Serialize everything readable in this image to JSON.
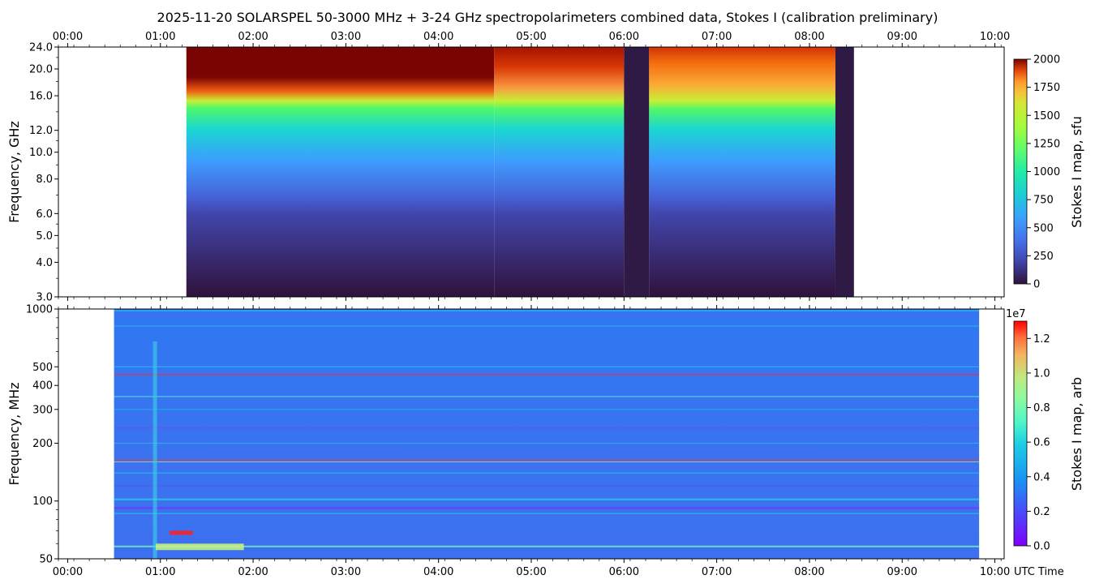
{
  "title": "2025-11-20  SOLARSPEL  50-3000 MHz  +  3-24 GHz  spectropolarimeters combined data,  Stokes I  (calibration preliminary)",
  "x_time_label": "UTC Time",
  "chart_data": [
    {
      "type": "heatmap",
      "panel": "upper",
      "ylabel": "Frequency, GHz",
      "xlim_hours": [
        -0.1,
        10.1
      ],
      "x_ticks": [
        "00:00",
        "01:00",
        "02:00",
        "03:00",
        "04:00",
        "05:00",
        "06:00",
        "07:00",
        "08:00",
        "09:00",
        "10:00"
      ],
      "x_tick_hours": [
        0,
        1,
        2,
        3,
        4,
        5,
        6,
        7,
        8,
        9,
        10
      ],
      "y_scale": "log",
      "ylim_ghz": [
        3.0,
        24.0
      ],
      "y_ticks": [
        "3.0",
        "4.0",
        "5.0",
        "6.0",
        "8.0",
        "10.0",
        "12.0",
        "16.0",
        "20.0",
        "24.0"
      ],
      "y_tick_values": [
        3,
        4,
        5,
        6,
        8,
        10,
        12,
        16,
        20,
        24
      ],
      "data_extent_hours": [
        1.28,
        8.48
      ],
      "gaps_hours": [
        [
          6.0,
          6.27
        ],
        [
          8.28,
          8.48
        ]
      ],
      "colorbar": {
        "label": "Stokes I map, sfu",
        "min": 0,
        "max": 2000,
        "ticks": [
          "0",
          "250",
          "500",
          "750",
          "1000",
          "1250",
          "1500",
          "1750",
          "2000"
        ],
        "tick_values": [
          0,
          250,
          500,
          750,
          1000,
          1250,
          1500,
          1750,
          2000
        ],
        "colormap": "turbo"
      }
    },
    {
      "type": "heatmap",
      "panel": "lower",
      "ylabel": "Frequency, MHz",
      "xlim_hours": [
        -0.1,
        10.1
      ],
      "x_ticks": [
        "00:00",
        "01:00",
        "02:00",
        "03:00",
        "04:00",
        "05:00",
        "06:00",
        "07:00",
        "08:00",
        "09:00",
        "10:00"
      ],
      "x_tick_hours": [
        0,
        1,
        2,
        3,
        4,
        5,
        6,
        7,
        8,
        9,
        10
      ],
      "y_scale": "log",
      "ylim_mhz": [
        50,
        1000
      ],
      "y_ticks": [
        "50",
        "100",
        "200",
        "300",
        "400",
        "500",
        "1000"
      ],
      "y_tick_values": [
        50,
        100,
        200,
        300,
        400,
        500,
        1000
      ],
      "data_extent_hours": [
        0.5,
        9.83
      ],
      "colorbar": {
        "label": "Stokes I map, arb",
        "offset_text": "1e7",
        "min": 0.0,
        "max": 1.3,
        "ticks": [
          "0.0",
          "0.2",
          "0.4",
          "0.6",
          "0.8",
          "1.0",
          "1.2"
        ],
        "tick_values": [
          0.0,
          0.2,
          0.4,
          0.6,
          0.8,
          1.0,
          1.2
        ],
        "colormap": "rainbow"
      }
    }
  ]
}
